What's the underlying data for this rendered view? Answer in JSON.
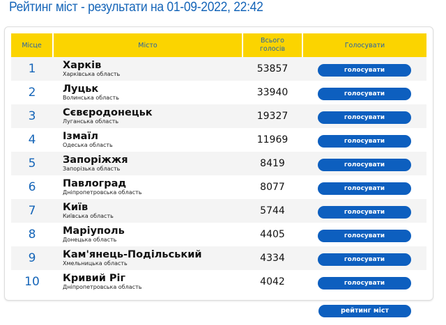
{
  "title": "Рейтинг міст - результати на 01-09-2022, 22:42",
  "headers": {
    "place": "Місце",
    "city": "Місто",
    "votes": "Всього голосів",
    "vote": "Голосувати"
  },
  "vote_label": "голосувати",
  "rating_button": "рейтинг міст",
  "rows": [
    {
      "place": "1",
      "city": "Харків",
      "region": "Харківська область",
      "votes": "53857"
    },
    {
      "place": "2",
      "city": "Луцьк",
      "region": "Волинська область",
      "votes": "33940"
    },
    {
      "place": "3",
      "city": "Сєвєродонецьк",
      "region": "Луганська область",
      "votes": "19327"
    },
    {
      "place": "4",
      "city": "Ізмаїл",
      "region": "Одеська область",
      "votes": "11969"
    },
    {
      "place": "5",
      "city": "Запоріжжя",
      "region": "Запорізька область",
      "votes": "8419"
    },
    {
      "place": "6",
      "city": "Павлоград",
      "region": "Дніпропетровська область",
      "votes": "8077"
    },
    {
      "place": "7",
      "city": "Київ",
      "region": "Київська область",
      "votes": "5744"
    },
    {
      "place": "8",
      "city": "Маріуполь",
      "region": "Донецька область",
      "votes": "4405"
    },
    {
      "place": "9",
      "city": "Кам'янець-Подільський",
      "region": "Хмельницька область",
      "votes": "4334"
    },
    {
      "place": "10",
      "city": "Кривий Ріг",
      "region": "Дніпропетровська область",
      "votes": "4042"
    }
  ],
  "colors": {
    "header_bg": "#fbd400",
    "accent": "#0d5fbf",
    "title": "#1565b8"
  }
}
